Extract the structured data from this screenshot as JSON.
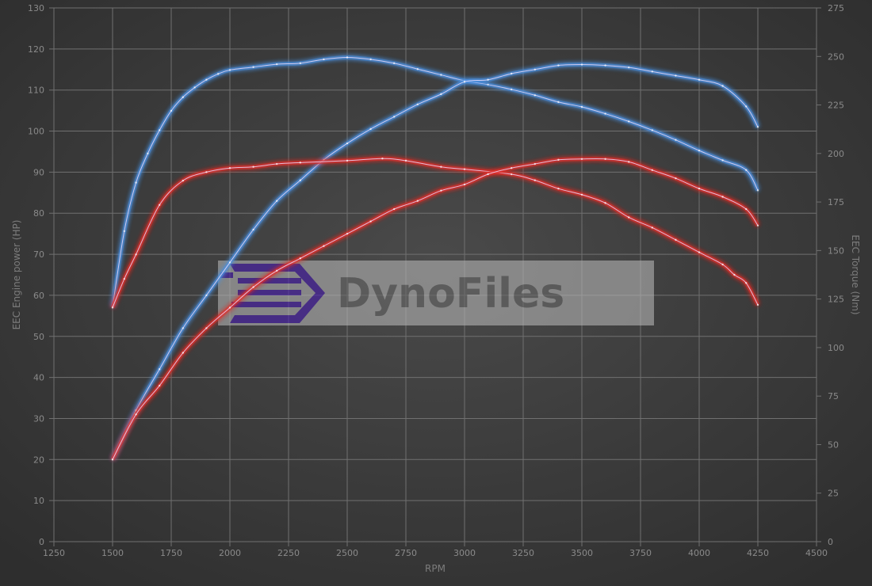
{
  "chart_data": {
    "type": "line",
    "title": "",
    "xlabel": "RPM",
    "ylabel_left": "EEC Engine power (HP)",
    "ylabel_right": "EEC Torque (Nm)",
    "xlim": [
      1250,
      4500
    ],
    "xticks": [
      1250,
      1500,
      1750,
      2000,
      2250,
      2500,
      2750,
      3000,
      3250,
      3500,
      3750,
      4000,
      4250,
      4500
    ],
    "ylim_left": [
      0,
      130
    ],
    "yticks_left": [
      0,
      10,
      20,
      30,
      40,
      50,
      60,
      70,
      80,
      90,
      100,
      110,
      120,
      130
    ],
    "ylim_right": [
      0,
      275
    ],
    "yticks_right": [
      0,
      25,
      50,
      75,
      100,
      125,
      150,
      175,
      200,
      225,
      250,
      275
    ],
    "grid": true,
    "watermark": "DynoFiles",
    "colors": {
      "tuned": "#4a8fe0",
      "stock": "#e0302a",
      "background": "#3a3a3a",
      "grid": "#6e6e6e",
      "watermark_logo": "#5b3aa8"
    },
    "series": [
      {
        "axis": "right",
        "color": "tuned",
        "x": [
          1500,
          1550,
          1600,
          1650,
          1700,
          1750,
          1800,
          1850,
          1900,
          1950,
          2000,
          2100,
          2200,
          2300,
          2400,
          2500,
          2600,
          2700,
          2800,
          2900,
          3000,
          3100,
          3200,
          3300,
          3400,
          3500,
          3600,
          3700,
          3800,
          3900,
          4000,
          4100,
          4200,
          4250
        ],
        "y": [
          121,
          160,
          185,
          200,
          212,
          222,
          229,
          234,
          238,
          241,
          243,
          244.5,
          246,
          246.5,
          248.5,
          249.5,
          248.5,
          246.5,
          243.5,
          240.5,
          237.5,
          235.5,
          233,
          230,
          226.5,
          224,
          220.5,
          216.5,
          212,
          207,
          201.5,
          196.5,
          191.5,
          181
        ]
      },
      {
        "axis": "left",
        "color": "tuned",
        "x": [
          1500,
          1600,
          1700,
          1800,
          1900,
          2000,
          2100,
          2200,
          2300,
          2400,
          2500,
          2600,
          2700,
          2800,
          2900,
          3000,
          3100,
          3200,
          3300,
          3400,
          3500,
          3600,
          3700,
          3800,
          3900,
          4000,
          4100,
          4200,
          4250
        ],
        "y": [
          20,
          32,
          42,
          52,
          60,
          68,
          76,
          83,
          88,
          93,
          97,
          100.5,
          103.5,
          106.5,
          109,
          112,
          112.5,
          114,
          115,
          116,
          116.2,
          116,
          115.5,
          114.5,
          113.5,
          112.5,
          111,
          106,
          101
        ]
      },
      {
        "axis": "right",
        "color": "stock",
        "x": [
          1500,
          1550,
          1600,
          1700,
          1800,
          1900,
          2000,
          2100,
          2200,
          2300,
          2500,
          2650,
          2750,
          2900,
          3000,
          3200,
          3300,
          3400,
          3500,
          3600,
          3700,
          3800,
          3900,
          4000,
          4100,
          4150,
          4200,
          4250
        ],
        "y": [
          120.6,
          135.4,
          148,
          173.5,
          186,
          190.4,
          192.5,
          193.1,
          194.6,
          195.3,
          196.3,
          197.4,
          196.3,
          193.1,
          191.9,
          189.3,
          186.2,
          181.9,
          178.8,
          174.5,
          167.1,
          161.8,
          155.5,
          149.1,
          142.8,
          137.5,
          133.3,
          122
        ]
      },
      {
        "axis": "left",
        "color": "stock",
        "x": [
          1500,
          1600,
          1700,
          1800,
          1900,
          2000,
          2100,
          2200,
          2300,
          2400,
          2500,
          2600,
          2700,
          2800,
          2900,
          3000,
          3100,
          3200,
          3300,
          3400,
          3500,
          3600,
          3700,
          3800,
          3900,
          4000,
          4100,
          4200,
          4250
        ],
        "y": [
          20,
          31,
          38,
          46,
          52,
          57,
          62,
          66,
          69,
          72,
          75,
          78,
          81,
          83,
          85.5,
          87,
          89.5,
          91,
          92,
          93,
          93.2,
          93.2,
          92.5,
          90.5,
          88.5,
          86,
          84,
          81,
          77
        ]
      }
    ]
  }
}
